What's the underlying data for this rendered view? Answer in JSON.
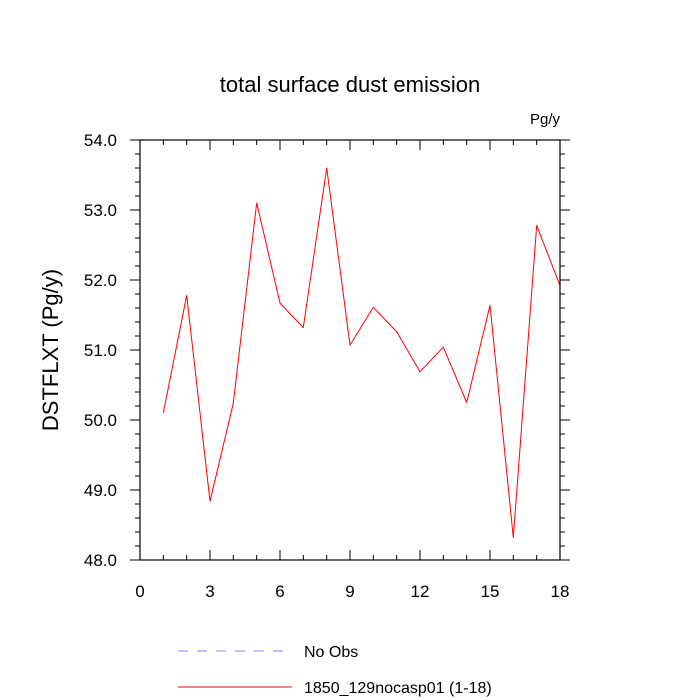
{
  "chart_data": {
    "type": "line",
    "title": "total surface dust emission",
    "units_label": "Pg/y",
    "ylabel": "DSTFLXT  (Pg/y)",
    "xlabel": "",
    "xlim": [
      0,
      18
    ],
    "ylim": [
      48.0,
      54.0
    ],
    "x_ticks": [
      0,
      3,
      6,
      9,
      12,
      15,
      18
    ],
    "x_tick_labels": [
      "0",
      "3",
      "6",
      "9",
      "12",
      "15",
      "18"
    ],
    "y_ticks": [
      48.0,
      49.0,
      50.0,
      51.0,
      52.0,
      53.0,
      54.0
    ],
    "y_tick_labels": [
      "48.0",
      "49.0",
      "50.0",
      "51.0",
      "52.0",
      "53.0",
      "54.0"
    ],
    "grid": false,
    "legend_position": "bottom",
    "series": [
      {
        "name": "1850_129nocasp01 (1-18)",
        "color": "#ff0000",
        "style": "solid",
        "x": [
          1,
          2,
          3,
          4,
          5,
          6,
          7,
          8,
          9,
          10,
          11,
          12,
          13,
          14,
          15,
          16,
          17,
          18
        ],
        "values": [
          50.1,
          51.78,
          48.84,
          50.24,
          53.1,
          51.67,
          51.32,
          53.6,
          51.07,
          51.61,
          51.26,
          50.69,
          51.04,
          50.25,
          51.64,
          48.32,
          52.78,
          51.92
        ]
      }
    ],
    "legend": [
      {
        "label": "No Obs",
        "color": "#8a8aff",
        "style": "dashed"
      },
      {
        "label": "1850_129nocasp01 (1-18)",
        "color": "#ff0000",
        "style": "solid"
      }
    ]
  }
}
